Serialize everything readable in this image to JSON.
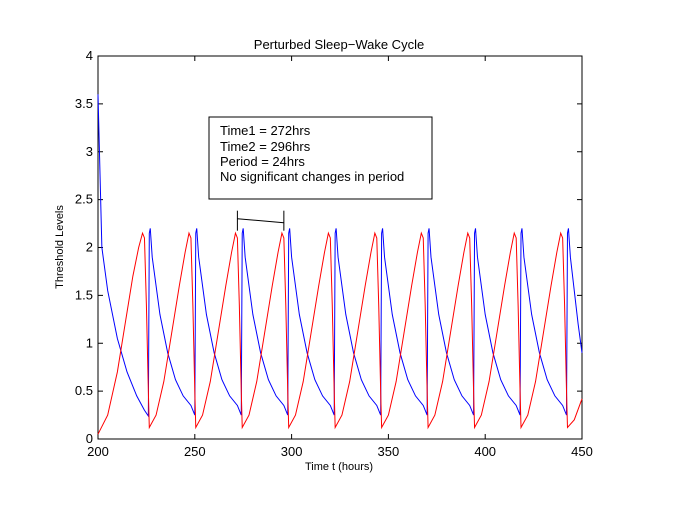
{
  "chart_data": {
    "type": "line",
    "title": "Perturbed Sleep−Wake Cycle",
    "xlabel": "Time t (hours)",
    "ylabel": "Threshold Levels",
    "xlim": [
      200,
      450
    ],
    "ylim": [
      0,
      4
    ],
    "x_ticks": [
      200,
      250,
      300,
      350,
      400,
      450
    ],
    "y_ticks": [
      0,
      0.5,
      1,
      1.5,
      2,
      2.5,
      3,
      3.5,
      4
    ],
    "x_tick_labels": [
      "200",
      "250",
      "300",
      "350",
      "400",
      "450"
    ],
    "y_tick_labels": [
      "0",
      "0.5",
      "1",
      "1.5",
      "2",
      "2.5",
      "3",
      "3.5",
      "4"
    ],
    "grid": false,
    "legend": "none",
    "series": [
      {
        "color": "#0000ff",
        "points": [
          [
            200,
            3.6
          ],
          [
            202,
            2.0
          ],
          [
            205,
            1.55
          ],
          [
            210,
            1.05
          ],
          [
            215,
            0.7
          ],
          [
            220,
            0.45
          ],
          [
            224,
            0.3
          ],
          [
            226,
            0.24
          ],
          [
            226.5,
            2.15
          ],
          [
            227,
            2.2
          ],
          [
            228,
            1.9
          ],
          [
            232,
            1.3
          ],
          [
            236,
            0.9
          ],
          [
            240,
            0.62
          ],
          [
            244,
            0.45
          ],
          [
            248,
            0.35
          ],
          [
            250,
            0.25
          ],
          [
            250.5,
            2.15
          ],
          [
            251,
            2.2
          ],
          [
            252,
            1.9
          ],
          [
            256,
            1.3
          ],
          [
            260,
            0.9
          ],
          [
            264,
            0.62
          ],
          [
            268,
            0.45
          ],
          [
            272,
            0.35
          ],
          [
            274,
            0.25
          ],
          [
            274.5,
            2.15
          ],
          [
            275,
            2.2
          ],
          [
            276,
            1.9
          ],
          [
            280,
            1.3
          ],
          [
            284,
            0.9
          ],
          [
            288,
            0.62
          ],
          [
            292,
            0.45
          ],
          [
            296,
            0.35
          ],
          [
            298,
            0.25
          ],
          [
            298.5,
            2.15
          ],
          [
            299,
            2.2
          ],
          [
            300,
            1.9
          ],
          [
            304,
            1.3
          ],
          [
            308,
            0.9
          ],
          [
            312,
            0.62
          ],
          [
            316,
            0.45
          ],
          [
            320,
            0.35
          ],
          [
            322,
            0.25
          ],
          [
            322.5,
            2.15
          ],
          [
            323,
            2.2
          ],
          [
            324,
            1.9
          ],
          [
            328,
            1.3
          ],
          [
            332,
            0.9
          ],
          [
            336,
            0.62
          ],
          [
            340,
            0.45
          ],
          [
            344,
            0.35
          ],
          [
            346,
            0.25
          ],
          [
            346.5,
            2.15
          ],
          [
            347,
            2.2
          ],
          [
            348,
            1.9
          ],
          [
            352,
            1.3
          ],
          [
            356,
            0.9
          ],
          [
            360,
            0.62
          ],
          [
            364,
            0.45
          ],
          [
            368,
            0.35
          ],
          [
            370,
            0.25
          ],
          [
            370.5,
            2.15
          ],
          [
            371,
            2.2
          ],
          [
            372,
            1.9
          ],
          [
            376,
            1.3
          ],
          [
            380,
            0.9
          ],
          [
            384,
            0.62
          ],
          [
            388,
            0.45
          ],
          [
            392,
            0.35
          ],
          [
            394,
            0.25
          ],
          [
            394.5,
            2.15
          ],
          [
            395,
            2.2
          ],
          [
            396,
            1.9
          ],
          [
            400,
            1.3
          ],
          [
            404,
            0.9
          ],
          [
            408,
            0.62
          ],
          [
            412,
            0.45
          ],
          [
            416,
            0.35
          ],
          [
            418,
            0.25
          ],
          [
            418.5,
            2.15
          ],
          [
            419,
            2.2
          ],
          [
            420,
            1.9
          ],
          [
            424,
            1.3
          ],
          [
            428,
            0.9
          ],
          [
            432,
            0.62
          ],
          [
            436,
            0.45
          ],
          [
            440,
            0.35
          ],
          [
            442,
            0.25
          ],
          [
            442.5,
            2.15
          ],
          [
            443,
            2.2
          ],
          [
            444,
            1.9
          ],
          [
            448,
            1.2
          ],
          [
            450,
            0.9
          ]
        ]
      },
      {
        "color": "#ff0000",
        "points": [
          [
            200,
            0.05
          ],
          [
            205,
            0.25
          ],
          [
            210,
            0.7
          ],
          [
            214,
            1.2
          ],
          [
            218,
            1.7
          ],
          [
            221,
            2.0
          ],
          [
            223,
            2.15
          ],
          [
            224,
            2.1
          ],
          [
            225,
            1.4
          ],
          [
            226,
            0.5
          ],
          [
            226.5,
            0.12
          ],
          [
            230,
            0.25
          ],
          [
            234,
            0.6
          ],
          [
            238,
            1.1
          ],
          [
            242,
            1.6
          ],
          [
            245,
            1.95
          ],
          [
            247,
            2.15
          ],
          [
            248,
            2.1
          ],
          [
            249,
            1.4
          ],
          [
            250,
            0.5
          ],
          [
            250.5,
            0.12
          ],
          [
            254,
            0.25
          ],
          [
            258,
            0.6
          ],
          [
            262,
            1.1
          ],
          [
            266,
            1.6
          ],
          [
            269,
            1.95
          ],
          [
            271,
            2.15
          ],
          [
            272,
            2.1
          ],
          [
            273,
            1.4
          ],
          [
            274,
            0.5
          ],
          [
            274.5,
            0.12
          ],
          [
            278,
            0.25
          ],
          [
            282,
            0.6
          ],
          [
            286,
            1.1
          ],
          [
            290,
            1.6
          ],
          [
            293,
            1.95
          ],
          [
            295,
            2.15
          ],
          [
            296,
            2.1
          ],
          [
            297,
            1.4
          ],
          [
            298,
            0.5
          ],
          [
            298.5,
            0.12
          ],
          [
            302,
            0.25
          ],
          [
            306,
            0.6
          ],
          [
            310,
            1.1
          ],
          [
            314,
            1.6
          ],
          [
            317,
            1.95
          ],
          [
            319,
            2.15
          ],
          [
            320,
            2.1
          ],
          [
            321,
            1.4
          ],
          [
            322,
            0.5
          ],
          [
            322.5,
            0.12
          ],
          [
            326,
            0.25
          ],
          [
            330,
            0.6
          ],
          [
            334,
            1.1
          ],
          [
            338,
            1.6
          ],
          [
            341,
            1.95
          ],
          [
            343,
            2.15
          ],
          [
            344,
            2.1
          ],
          [
            345,
            1.4
          ],
          [
            346,
            0.5
          ],
          [
            346.5,
            0.12
          ],
          [
            350,
            0.25
          ],
          [
            354,
            0.6
          ],
          [
            358,
            1.1
          ],
          [
            362,
            1.6
          ],
          [
            365,
            1.95
          ],
          [
            367,
            2.15
          ],
          [
            368,
            2.1
          ],
          [
            369,
            1.4
          ],
          [
            370,
            0.5
          ],
          [
            370.5,
            0.12
          ],
          [
            374,
            0.25
          ],
          [
            378,
            0.6
          ],
          [
            382,
            1.1
          ],
          [
            386,
            1.6
          ],
          [
            389,
            1.95
          ],
          [
            391,
            2.15
          ],
          [
            392,
            2.1
          ],
          [
            393,
            1.4
          ],
          [
            394,
            0.5
          ],
          [
            394.5,
            0.12
          ],
          [
            398,
            0.25
          ],
          [
            402,
            0.6
          ],
          [
            406,
            1.1
          ],
          [
            410,
            1.6
          ],
          [
            413,
            1.95
          ],
          [
            415,
            2.15
          ],
          [
            416,
            2.1
          ],
          [
            417,
            1.4
          ],
          [
            418,
            0.5
          ],
          [
            418.5,
            0.12
          ],
          [
            422,
            0.25
          ],
          [
            426,
            0.6
          ],
          [
            430,
            1.1
          ],
          [
            434,
            1.6
          ],
          [
            437,
            1.95
          ],
          [
            439,
            2.15
          ],
          [
            440,
            2.1
          ],
          [
            441,
            1.4
          ],
          [
            442,
            0.5
          ],
          [
            442.5,
            0.12
          ],
          [
            446,
            0.2
          ],
          [
            450,
            0.42
          ]
        ]
      }
    ],
    "annotation": {
      "lines": [
        "Time1 = 272hrs",
        "Time2 = 296hrs",
        "Period = 24hrs",
        "No significant changes in period"
      ],
      "bracket": {
        "x1": 272,
        "x2": 296,
        "y": 2.28
      }
    }
  }
}
